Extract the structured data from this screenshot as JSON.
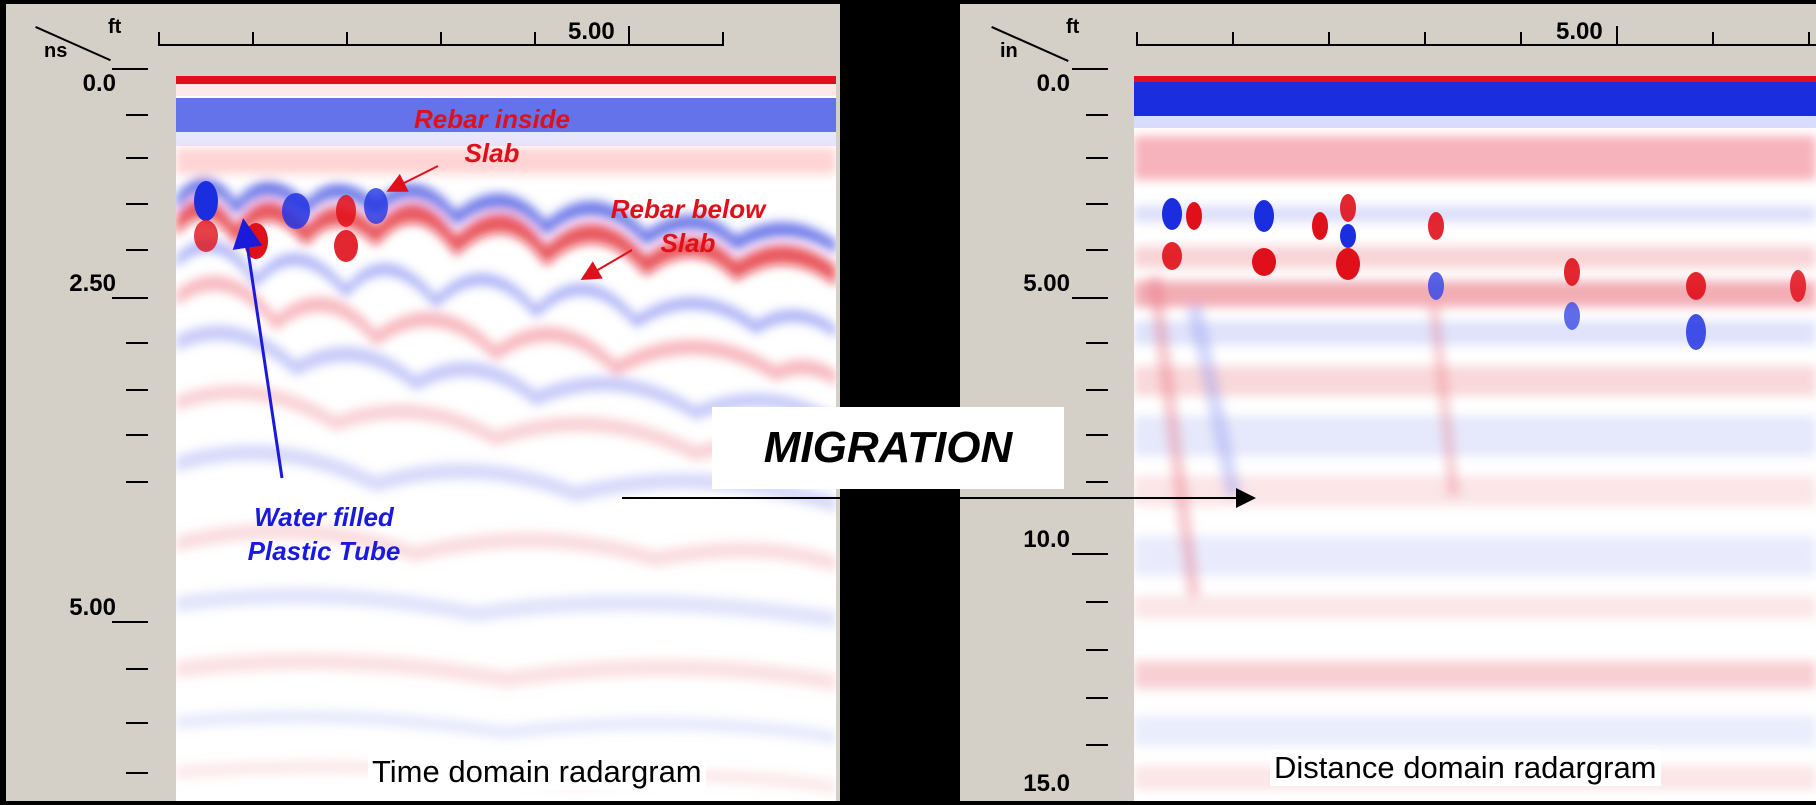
{
  "colors": {
    "positive": "#e0101a",
    "negative": "#1a1adc",
    "panel_bg": "#d4d0c8",
    "background": "#000000"
  },
  "left_panel": {
    "corner_unit_top": "ft",
    "corner_unit_side": "ns",
    "top_axis_label": "5.00",
    "vertical_labels": [
      "0.0",
      "2.50",
      "5.00"
    ],
    "caption": "Time domain radargram",
    "annotations": {
      "rebar_inside": [
        "Rebar inside",
        "Slab"
      ],
      "rebar_below": [
        "Rebar below",
        "Slab"
      ],
      "water_tube": [
        "Water filled",
        "Plastic Tube"
      ]
    }
  },
  "right_panel": {
    "corner_unit_top": "ft",
    "corner_unit_side": "in",
    "top_axis_label": "5.00",
    "vertical_labels": [
      "0.0",
      "5.00",
      "10.0",
      "15.0"
    ],
    "caption": "Distance domain radargram"
  },
  "center": {
    "migration_label": "MIGRATION"
  }
}
